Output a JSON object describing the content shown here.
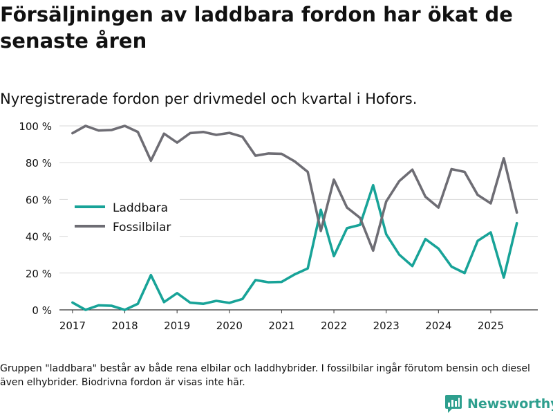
{
  "title": "Försäljningen av laddbara fordon har ökat de senaste åren",
  "subtitle": "Nyregistrerade fordon per drivmedel och kvartal i Hofors.",
  "footnote": "Gruppen \"laddbara\" består av både rena elbilar och laddhybrider. I fossilbilar ingår förutom bensin och diesel även elhybrider. Biodrivna fordon är visas inte här.",
  "brand": "Newsworthy",
  "colors": {
    "laddbara": "#18a398",
    "fossil": "#6e6d74",
    "brand": "#2e9f8e",
    "grid": "#d8d8d8"
  },
  "chart_data": {
    "type": "line",
    "title": "Försäljningen av laddbara fordon har ökat de senaste åren",
    "subtitle": "Nyregistrerade fordon per drivmedel och kvartal i Hofors.",
    "xlabel": "",
    "ylabel": "",
    "x_start": 2017,
    "x_step": 0.25,
    "xlim": [
      2016.75,
      2025.9
    ],
    "ylim": [
      0,
      100
    ],
    "x_ticks": [
      2017,
      2018,
      2019,
      2020,
      2021,
      2022,
      2023,
      2024,
      2025
    ],
    "x_tick_labels": [
      "2017",
      "2018",
      "2019",
      "2020",
      "2021",
      "2022",
      "2023",
      "2024",
      "2025"
    ],
    "y_ticks": [
      0,
      20,
      40,
      60,
      80,
      100
    ],
    "y_tick_labels": [
      "0 %",
      "20 %",
      "40 %",
      "60 %",
      "80 %",
      "100 %"
    ],
    "legend_position": "left-middle",
    "series": [
      {
        "name": "Laddbara",
        "color_key": "laddbara",
        "values": [
          4,
          0,
          2.5,
          2.2,
          0,
          3.3,
          18.9,
          4.2,
          9.1,
          3.9,
          3.3,
          4.9,
          3.8,
          5.9,
          16.2,
          15,
          15.2,
          19.3,
          22.5,
          54.4,
          29.2,
          44.4,
          46.2,
          67.8,
          41.1,
          30,
          23.8,
          38.5,
          33.3,
          23.5,
          20,
          37.5,
          42.1,
          17.6,
          47.1
        ]
      },
      {
        "name": "Fossilbilar",
        "color_key": "fossil",
        "values": [
          96,
          100,
          97.5,
          97.8,
          100,
          96.7,
          81.1,
          95.8,
          90.9,
          96.1,
          96.7,
          95.1,
          96.2,
          94.1,
          83.8,
          85,
          84.8,
          80.7,
          75,
          42.9,
          70.8,
          55.6,
          50,
          32.2,
          58.9,
          70,
          76.2,
          61.5,
          55.6,
          76.5,
          75,
          62.5,
          57.9,
          82.4,
          52.9
        ]
      }
    ]
  }
}
